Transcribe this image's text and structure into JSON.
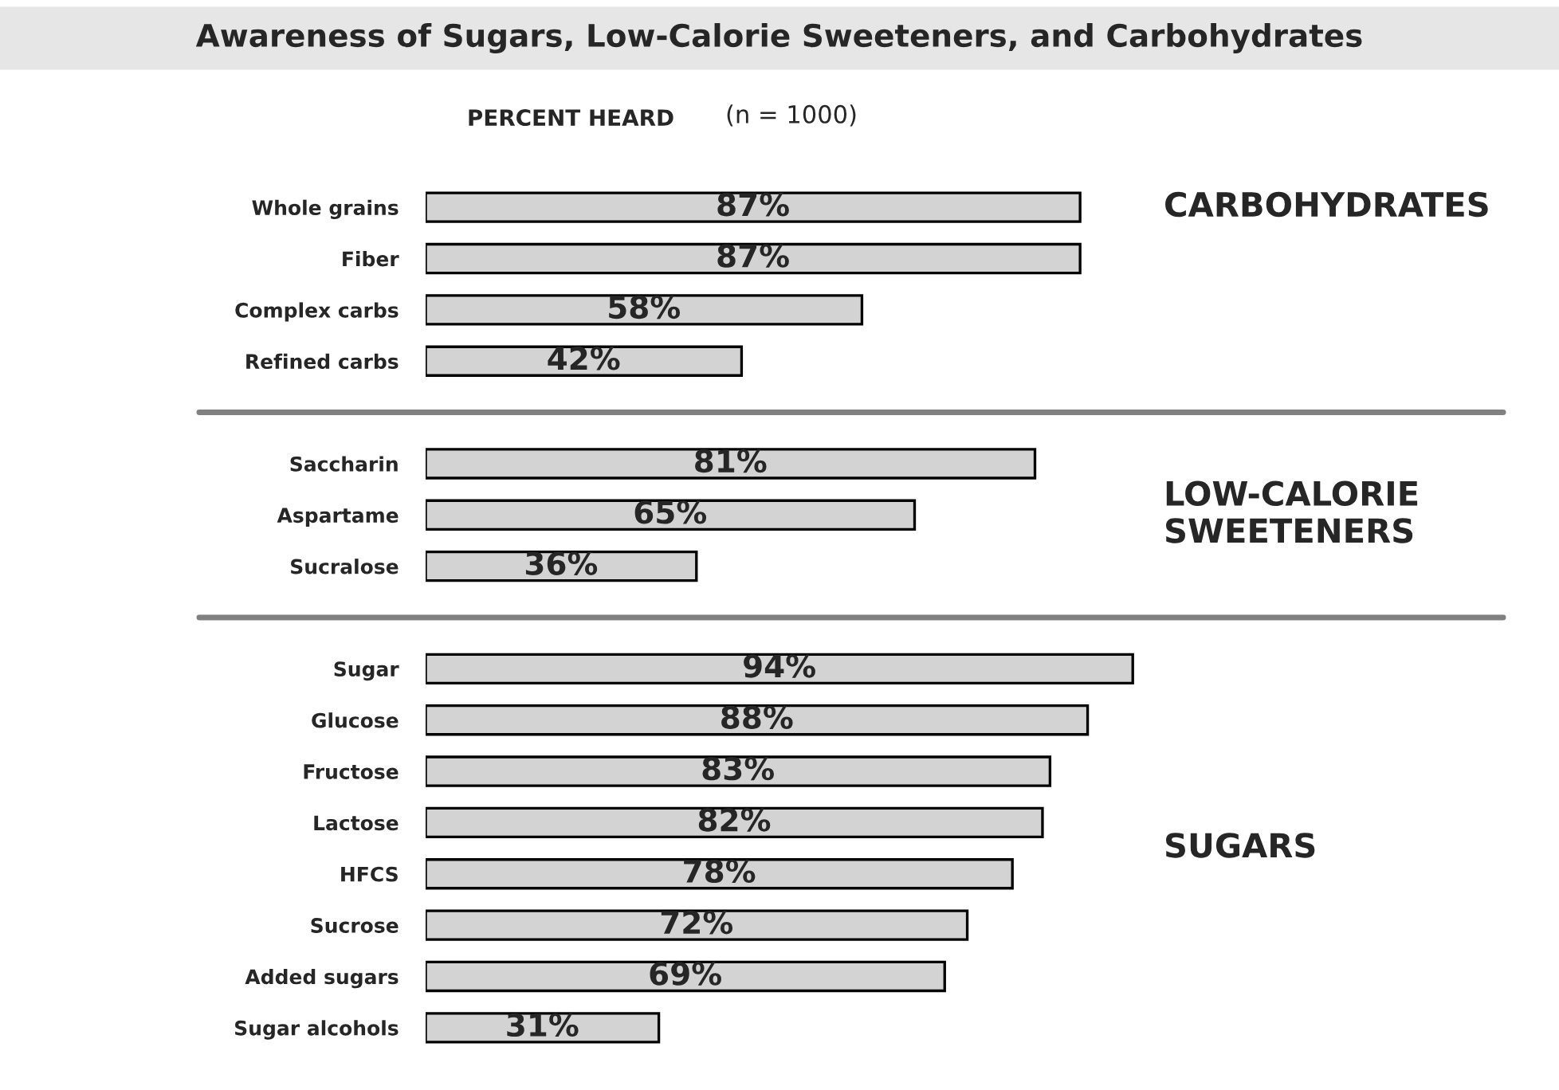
{
  "chart_data": {
    "type": "bar",
    "orientation": "horizontal",
    "title": "Awareness of Sugars, Low-Calorie Sweeteners, and Carbohydrates",
    "subtitle": "PERCENT HEARD",
    "annotations": [
      "(n = 1000)",
      "CARBOHYDRATES",
      "LOW-CALORIE\nSWEETENERS",
      "SUGARS"
    ],
    "categories": [
      "Whole grains",
      "Fiber",
      "Complex carbs",
      "Refined carbs",
      null,
      "Saccharin",
      "Aspartame",
      "Sucralose",
      null,
      "Sugar",
      "Glucose",
      "Fructose",
      "Lactose",
      "HFCS",
      "Sucrose",
      "Added sugars",
      "Sugar alcohols"
    ],
    "values": [
      87,
      87,
      58,
      42,
      null,
      81,
      65,
      36,
      null,
      94,
      88,
      83,
      82,
      78,
      72,
      69,
      31
    ],
    "value_labels": [
      "87%",
      "87%",
      "58%",
      "42%",
      null,
      "81%",
      "65%",
      "36%",
      null,
      "94%",
      "88%",
      "83%",
      "82%",
      "78%",
      "72%",
      "69%",
      "31%"
    ],
    "color": "#d3d3d3",
    "grid": false
  }
}
